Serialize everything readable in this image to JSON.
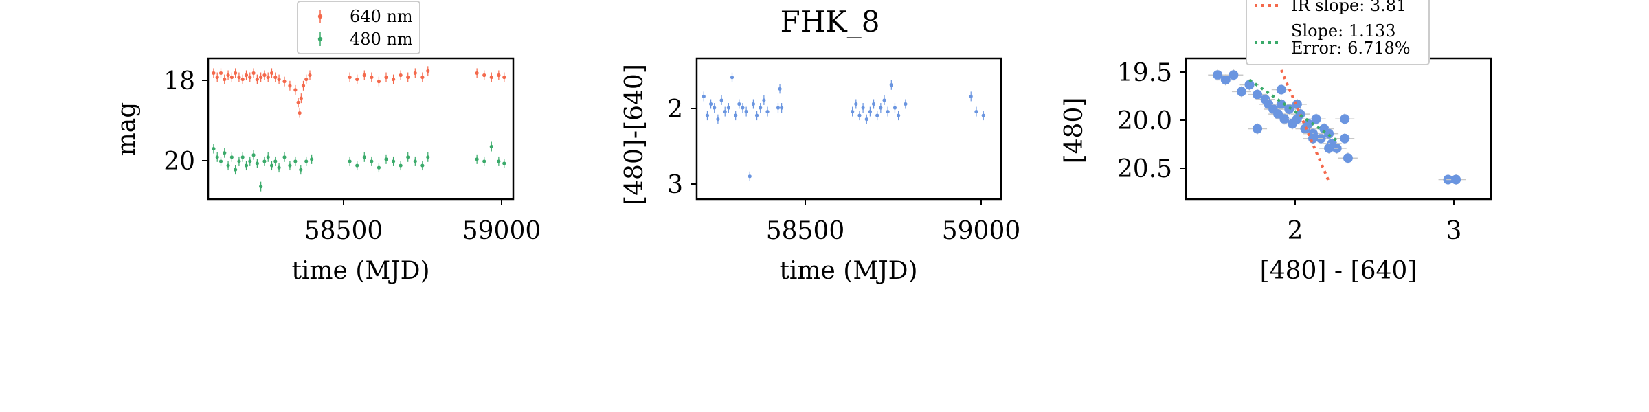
{
  "title": "FHK_8",
  "colors": {
    "red": "#f4694c",
    "green": "#3aaa6a",
    "blue": "#6a95e0",
    "ir_line": "#f4694c",
    "fit_line": "#3aaa6a",
    "err_bar": "#c8c8c8"
  },
  "panels": {
    "p1": {
      "xlabel": "time (MJD)",
      "ylabel": "mag",
      "xticks": [
        "58500",
        "59000"
      ],
      "yticks": [
        "18",
        "20"
      ],
      "legend": [
        "640 nm",
        "480 nm"
      ]
    },
    "p2": {
      "xlabel": "time (MJD)",
      "ylabel": "[480]-[640]",
      "xticks": [
        "58500",
        "59000"
      ],
      "yticks": [
        "2",
        "3"
      ]
    },
    "p3": {
      "xlabel": "[480] - [640]",
      "ylabel": "[480]",
      "xticks": [
        "2",
        "3"
      ],
      "yticks": [
        "19.5",
        "20.0",
        "20.5"
      ],
      "legend_ir": "IR slope: 3.81",
      "legend_fit_1": "Slope: 1.133",
      "legend_fit_2": "Error: 6.718%"
    }
  },
  "chart_data": [
    {
      "type": "scatter",
      "panel": "p1",
      "xlabel": "time (MJD)",
      "ylabel": "mag",
      "xlim": [
        58200,
        59040
      ],
      "ylim": [
        20.9,
        17.55
      ],
      "y_inverted": true,
      "series": [
        {
          "name": "640 nm",
          "color": "#f4694c",
          "x": [
            58215,
            58225,
            58235,
            58245,
            58255,
            58265,
            58275,
            58285,
            58295,
            58305,
            58315,
            58325,
            58335,
            58345,
            58355,
            58365,
            58375,
            58385,
            58395,
            58410,
            58425,
            58440,
            58448,
            58452,
            58456,
            58462,
            58470,
            58480,
            58590,
            58610,
            58630,
            58650,
            58670,
            58690,
            58710,
            58730,
            58750,
            58770,
            58790,
            58805,
            58940,
            58960,
            58980,
            59000,
            59015
          ],
          "y": [
            17.9,
            18.0,
            17.9,
            18.05,
            17.95,
            18.0,
            17.9,
            18.0,
            18.05,
            17.95,
            18.0,
            17.9,
            18.05,
            18.0,
            17.95,
            18.0,
            17.9,
            18.0,
            18.05,
            18.1,
            18.2,
            18.3,
            18.6,
            18.85,
            18.5,
            18.2,
            18.05,
            17.95,
            18.0,
            18.05,
            17.95,
            18.0,
            18.1,
            18.0,
            18.05,
            17.95,
            18.0,
            17.9,
            18.0,
            17.85,
            17.9,
            17.95,
            18.0,
            17.95,
            18.0
          ]
        },
        {
          "name": "480 nm",
          "color": "#3aaa6a",
          "x": [
            58215,
            58225,
            58235,
            58245,
            58255,
            58265,
            58275,
            58285,
            58295,
            58305,
            58315,
            58325,
            58335,
            58345,
            58355,
            58365,
            58375,
            58385,
            58395,
            58410,
            58425,
            58440,
            58455,
            58470,
            58485,
            58590,
            58610,
            58630,
            58650,
            58670,
            58690,
            58710,
            58730,
            58750,
            58770,
            58790,
            58805,
            58940,
            58960,
            58980,
            59000,
            59015
          ],
          "y": [
            19.7,
            19.9,
            20.0,
            19.8,
            20.1,
            19.9,
            20.2,
            20.0,
            19.9,
            20.1,
            20.0,
            19.85,
            20.05,
            20.6,
            20.0,
            19.9,
            20.1,
            20.0,
            20.15,
            19.9,
            20.1,
            20.0,
            20.2,
            20.0,
            19.95,
            20.0,
            20.1,
            19.9,
            20.0,
            20.15,
            19.95,
            20.0,
            20.1,
            19.9,
            20.0,
            20.1,
            19.9,
            19.95,
            20.0,
            19.65,
            20.0,
            20.05
          ]
        }
      ]
    },
    {
      "type": "scatter",
      "panel": "p2",
      "xlabel": "time (MJD)",
      "ylabel": "[480]-[640]",
      "xlim": [
        58200,
        59060
      ],
      "ylim": [
        3.2,
        1.35
      ],
      "y_inverted": true,
      "series": [
        {
          "color": "#6a95e0",
          "x": [
            58220,
            58230,
            58240,
            58250,
            58260,
            58270,
            58280,
            58290,
            58300,
            58310,
            58320,
            58330,
            58340,
            58350,
            58360,
            58370,
            58380,
            58390,
            58400,
            58430,
            58435,
            58440,
            58640,
            58650,
            58660,
            58670,
            58680,
            58690,
            58700,
            58710,
            58720,
            58730,
            58740,
            58750,
            58760,
            58770,
            58790,
            58975,
            58990,
            59010
          ],
          "y": [
            1.85,
            2.1,
            1.95,
            2.0,
            2.15,
            1.9,
            2.05,
            2.0,
            1.6,
            2.1,
            1.95,
            2.0,
            2.05,
            2.9,
            1.95,
            2.1,
            2.0,
            1.9,
            2.05,
            2.0,
            1.75,
            2.0,
            2.05,
            1.95,
            2.1,
            2.0,
            2.15,
            2.05,
            1.95,
            2.1,
            2.0,
            1.9,
            2.05,
            1.7,
            2.0,
            2.1,
            1.95,
            1.85,
            2.05,
            2.1
          ]
        }
      ]
    },
    {
      "type": "scatter",
      "panel": "p3",
      "xlabel": "[480] - [640]",
      "ylabel": "[480]",
      "xlim": [
        1.3,
        3.22
      ],
      "ylim": [
        20.82,
        19.38
      ],
      "y_inverted": true,
      "series": [
        {
          "color": "#6a95e0",
          "x": [
            1.5,
            1.55,
            1.6,
            1.65,
            1.7,
            1.75,
            1.8,
            1.82,
            1.85,
            1.88,
            1.9,
            1.92,
            1.95,
            1.97,
            2.0,
            2.02,
            2.05,
            2.07,
            2.1,
            2.12,
            2.15,
            2.17,
            2.2,
            2.22,
            2.25,
            2.3,
            2.32,
            1.75,
            2.3,
            2.95,
            3.0,
            1.9,
            2.1,
            2.2,
            2.0
          ],
          "y": [
            19.55,
            19.6,
            19.55,
            19.72,
            19.65,
            19.75,
            19.8,
            19.85,
            19.9,
            19.95,
            19.85,
            20.0,
            19.9,
            20.05,
            20.0,
            19.95,
            20.1,
            20.05,
            20.15,
            20.0,
            20.2,
            20.1,
            20.15,
            20.25,
            20.3,
            20.2,
            20.4,
            20.1,
            20.0,
            20.62,
            20.62,
            19.7,
            20.2,
            20.3,
            19.85
          ]
        }
      ],
      "lines": [
        {
          "name": "IR slope: 3.81",
          "slope": 3.81,
          "x": [
            1.9,
            2.2
          ],
          "y": [
            19.5,
            20.64
          ]
        },
        {
          "name": "Slope: 1.133",
          "slope": 1.133,
          "x": [
            1.7,
            2.25
          ],
          "y": [
            19.6,
            20.22
          ]
        }
      ]
    }
  ]
}
